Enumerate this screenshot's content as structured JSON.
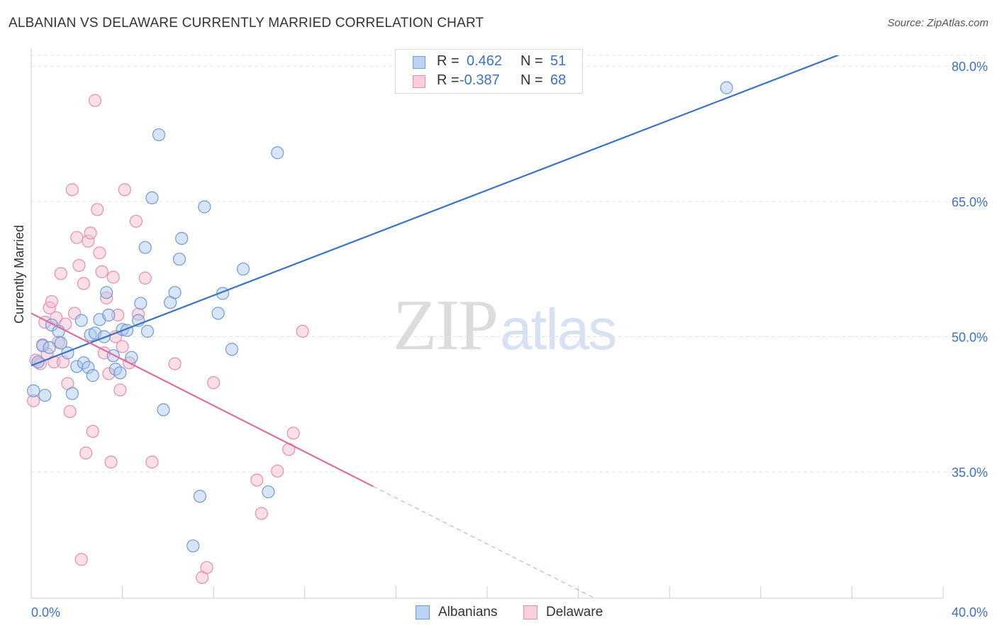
{
  "title": "ALBANIAN VS DELAWARE CURRENTLY MARRIED CORRELATION CHART",
  "source": "Source: ZipAtlas.com",
  "watermark": {
    "zip": "ZIP",
    "atlas": "atlas"
  },
  "legend_top": {
    "rows": [
      {
        "r_label": "R =",
        "r_value": "0.462",
        "n_label": "N =",
        "n_value": "51"
      },
      {
        "r_label": "R =",
        "r_value": "-0.387",
        "n_label": "N =",
        "n_value": "68"
      }
    ]
  },
  "legend_bottom": [
    "Albanians",
    "Delaware"
  ],
  "colors": {
    "blue": "#3a73c4",
    "blue_fill": "#a8c6ee",
    "blue_stroke": "#6f9ad8",
    "pink": "#e06b98",
    "pink_fill": "#f5b8cc",
    "pink_stroke": "#e88daf",
    "grid": "#e3e3e3",
    "axis_text": "#3a73c4"
  },
  "chart_data": {
    "type": "scatter",
    "title": "ALBANIAN VS DELAWARE CURRENTLY MARRIED CORRELATION CHART",
    "xlabel": "",
    "ylabel": "Currently Married",
    "xlim": [
      0.0,
      40.0
    ],
    "ylim": [
      21.0,
      81.2
    ],
    "x_tick_labels": [
      "0.0%",
      "40.0%"
    ],
    "y_ticks": [
      35.0,
      50.0,
      65.0,
      80.0
    ],
    "y_tick_labels": [
      "35.0%",
      "50.0%",
      "65.0%",
      "80.0%"
    ],
    "grid": true,
    "legend_position": "top-center",
    "series": [
      {
        "name": "Albanians",
        "r": 0.462,
        "n": 51,
        "trend": {
          "x0": 0.0,
          "y0": 46.8,
          "x1": 40.0,
          "y1": 85.7
        },
        "points": [
          [
            0.1,
            44.0
          ],
          [
            0.3,
            47.2
          ],
          [
            0.5,
            49.0
          ],
          [
            0.6,
            43.5
          ],
          [
            0.8,
            48.8
          ],
          [
            0.9,
            51.3
          ],
          [
            1.2,
            50.6
          ],
          [
            1.3,
            49.3
          ],
          [
            1.6,
            48.2
          ],
          [
            1.8,
            43.7
          ],
          [
            2.0,
            46.7
          ],
          [
            2.2,
            51.8
          ],
          [
            2.3,
            47.1
          ],
          [
            2.5,
            46.6
          ],
          [
            2.6,
            50.2
          ],
          [
            2.7,
            45.7
          ],
          [
            2.8,
            50.4
          ],
          [
            3.0,
            51.9
          ],
          [
            3.2,
            50.0
          ],
          [
            3.3,
            54.9
          ],
          [
            3.4,
            52.4
          ],
          [
            3.6,
            47.9
          ],
          [
            3.7,
            46.4
          ],
          [
            3.9,
            46.0
          ],
          [
            4.0,
            50.8
          ],
          [
            4.2,
            50.7
          ],
          [
            4.4,
            47.7
          ],
          [
            4.7,
            51.8
          ],
          [
            4.8,
            53.7
          ],
          [
            5.0,
            59.9
          ],
          [
            5.1,
            50.6
          ],
          [
            5.3,
            65.4
          ],
          [
            5.6,
            72.4
          ],
          [
            5.8,
            41.9
          ],
          [
            6.1,
            53.8
          ],
          [
            6.3,
            54.9
          ],
          [
            6.5,
            58.6
          ],
          [
            6.6,
            60.9
          ],
          [
            7.1,
            26.8
          ],
          [
            7.4,
            32.3
          ],
          [
            7.6,
            64.4
          ],
          [
            8.2,
            52.6
          ],
          [
            8.4,
            54.8
          ],
          [
            8.8,
            48.6
          ],
          [
            9.3,
            57.5
          ],
          [
            10.4,
            32.8
          ],
          [
            10.8,
            70.4
          ],
          [
            30.5,
            77.6
          ]
        ]
      },
      {
        "name": "Delaware",
        "r": -0.387,
        "n": 68,
        "trend": {
          "x0": 0.0,
          "y0": 52.6,
          "x1": 15.0,
          "y1": 33.4
        },
        "trend_dashed": {
          "x0": 15.0,
          "y0": 33.4,
          "x1": 25.5,
          "y1": 20.0
        },
        "points": [
          [
            0.1,
            42.9
          ],
          [
            0.2,
            47.4
          ],
          [
            0.4,
            47.0
          ],
          [
            0.5,
            49.1
          ],
          [
            0.6,
            51.6
          ],
          [
            0.7,
            48.1
          ],
          [
            0.8,
            53.2
          ],
          [
            0.9,
            53.9
          ],
          [
            1.0,
            47.2
          ],
          [
            1.1,
            52.1
          ],
          [
            1.2,
            49.4
          ],
          [
            1.3,
            57.0
          ],
          [
            1.4,
            47.2
          ],
          [
            1.5,
            51.4
          ],
          [
            1.6,
            44.8
          ],
          [
            1.7,
            41.7
          ],
          [
            1.8,
            66.3
          ],
          [
            1.9,
            52.6
          ],
          [
            2.0,
            61.0
          ],
          [
            2.1,
            57.9
          ],
          [
            2.2,
            25.3
          ],
          [
            2.3,
            55.9
          ],
          [
            2.4,
            37.1
          ],
          [
            2.5,
            60.6
          ],
          [
            2.6,
            61.5
          ],
          [
            2.7,
            39.5
          ],
          [
            2.8,
            76.2
          ],
          [
            2.9,
            64.1
          ],
          [
            3.0,
            59.3
          ],
          [
            3.1,
            57.2
          ],
          [
            3.2,
            48.2
          ],
          [
            3.3,
            54.3
          ],
          [
            3.4,
            45.9
          ],
          [
            3.5,
            36.1
          ],
          [
            3.6,
            56.6
          ],
          [
            3.7,
            50.0
          ],
          [
            3.8,
            52.4
          ],
          [
            3.9,
            44.1
          ],
          [
            4.0,
            48.9
          ],
          [
            4.1,
            66.3
          ],
          [
            4.3,
            47.1
          ],
          [
            4.6,
            62.8
          ],
          [
            4.7,
            52.5
          ],
          [
            5.0,
            56.5
          ],
          [
            5.3,
            36.1
          ],
          [
            6.3,
            47.0
          ],
          [
            7.5,
            23.3
          ],
          [
            7.7,
            24.4
          ],
          [
            8.0,
            44.9
          ],
          [
            9.9,
            34.1
          ],
          [
            10.1,
            30.4
          ],
          [
            10.8,
            35.1
          ],
          [
            11.3,
            37.5
          ],
          [
            11.5,
            39.3
          ],
          [
            11.9,
            50.6
          ]
        ]
      }
    ]
  }
}
